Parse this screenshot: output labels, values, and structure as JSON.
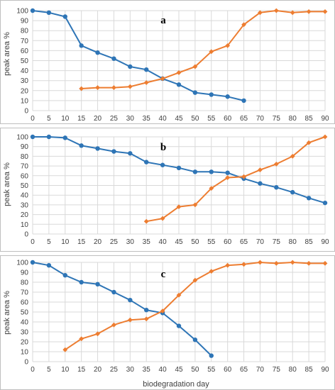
{
  "figure": {
    "xlabel": "biodegradation day"
  },
  "colors": {
    "series1": "#2E75B6",
    "series2": "#ED7D31",
    "grid": "#D9D9D9",
    "frame": "#BFBFBF"
  },
  "chart_data": [
    {
      "type": "line",
      "panel_label": "a",
      "ylabel": "peak area %",
      "xlabel": "",
      "xlim": [
        0,
        90
      ],
      "ylim": [
        0,
        100
      ],
      "xticks": [
        0,
        5,
        10,
        15,
        20,
        25,
        30,
        35,
        40,
        45,
        50,
        55,
        60,
        65,
        70,
        75,
        80,
        85,
        90
      ],
      "yticks": [
        0,
        10,
        20,
        30,
        40,
        50,
        60,
        70,
        80,
        90,
        100
      ],
      "grid": true,
      "series": [
        {
          "color": "#2E75B6",
          "marker": "circle",
          "x": [
            0,
            5,
            10,
            15,
            20,
            25,
            30,
            35,
            40,
            45,
            50,
            55,
            60,
            65
          ],
          "y": [
            100,
            98,
            94,
            65,
            58,
            52,
            44,
            41,
            32,
            26,
            18,
            16,
            14,
            10
          ]
        },
        {
          "color": "#ED7D31",
          "marker": "diamond",
          "x": [
            15,
            20,
            25,
            30,
            35,
            40,
            45,
            50,
            55,
            60,
            65,
            70,
            75,
            80,
            85,
            90
          ],
          "y": [
            22,
            23,
            23,
            24,
            28,
            32,
            38,
            44,
            59,
            65,
            86,
            98,
            100,
            98,
            99,
            99
          ]
        }
      ]
    },
    {
      "type": "line",
      "panel_label": "b",
      "ylabel": "peak area %",
      "xlabel": "",
      "xlim": [
        0,
        90
      ],
      "ylim": [
        0,
        100
      ],
      "xticks": [
        0,
        5,
        10,
        15,
        20,
        25,
        30,
        35,
        40,
        45,
        50,
        55,
        60,
        65,
        70,
        75,
        80,
        85,
        90
      ],
      "yticks": [
        0,
        10,
        20,
        30,
        40,
        50,
        60,
        70,
        80,
        90,
        100
      ],
      "grid": true,
      "series": [
        {
          "color": "#2E75B6",
          "marker": "circle",
          "x": [
            0,
            5,
            10,
            15,
            20,
            25,
            30,
            35,
            40,
            45,
            50,
            55,
            60,
            65,
            70,
            75,
            80,
            85,
            90
          ],
          "y": [
            100,
            100,
            99,
            91,
            88,
            85,
            83,
            74,
            71,
            68,
            64,
            64,
            63,
            57,
            52,
            48,
            43,
            37,
            32
          ]
        },
        {
          "color": "#ED7D31",
          "marker": "diamond",
          "x": [
            35,
            40,
            45,
            50,
            55,
            60,
            65,
            70,
            75,
            80,
            85,
            90
          ],
          "y": [
            13,
            16,
            28,
            30,
            47,
            58,
            59,
            66,
            72,
            80,
            94,
            100
          ]
        }
      ]
    },
    {
      "type": "line",
      "panel_label": "c",
      "ylabel": "peak area %",
      "xlabel": "biodegradation day",
      "xlim": [
        0,
        90
      ],
      "ylim": [
        0,
        100
      ],
      "xticks": [
        0,
        5,
        10,
        15,
        20,
        25,
        30,
        35,
        40,
        45,
        50,
        55,
        60,
        65,
        70,
        75,
        80,
        85,
        90
      ],
      "yticks": [
        0,
        10,
        20,
        30,
        40,
        50,
        60,
        70,
        80,
        90,
        100
      ],
      "grid": true,
      "series": [
        {
          "color": "#2E75B6",
          "marker": "circle",
          "x": [
            0,
            5,
            10,
            15,
            20,
            25,
            30,
            35,
            40,
            45,
            50,
            55
          ],
          "y": [
            100,
            97,
            87,
            80,
            78,
            70,
            62,
            52,
            49,
            36,
            22,
            6
          ]
        },
        {
          "color": "#ED7D31",
          "marker": "diamond",
          "x": [
            10,
            15,
            20,
            25,
            30,
            35,
            40,
            45,
            50,
            55,
            60,
            65,
            70,
            75,
            80,
            85,
            90
          ],
          "y": [
            12,
            23,
            28,
            37,
            42,
            43,
            51,
            67,
            82,
            91,
            97,
            98,
            100,
            99,
            100,
            99,
            99
          ]
        }
      ]
    }
  ]
}
